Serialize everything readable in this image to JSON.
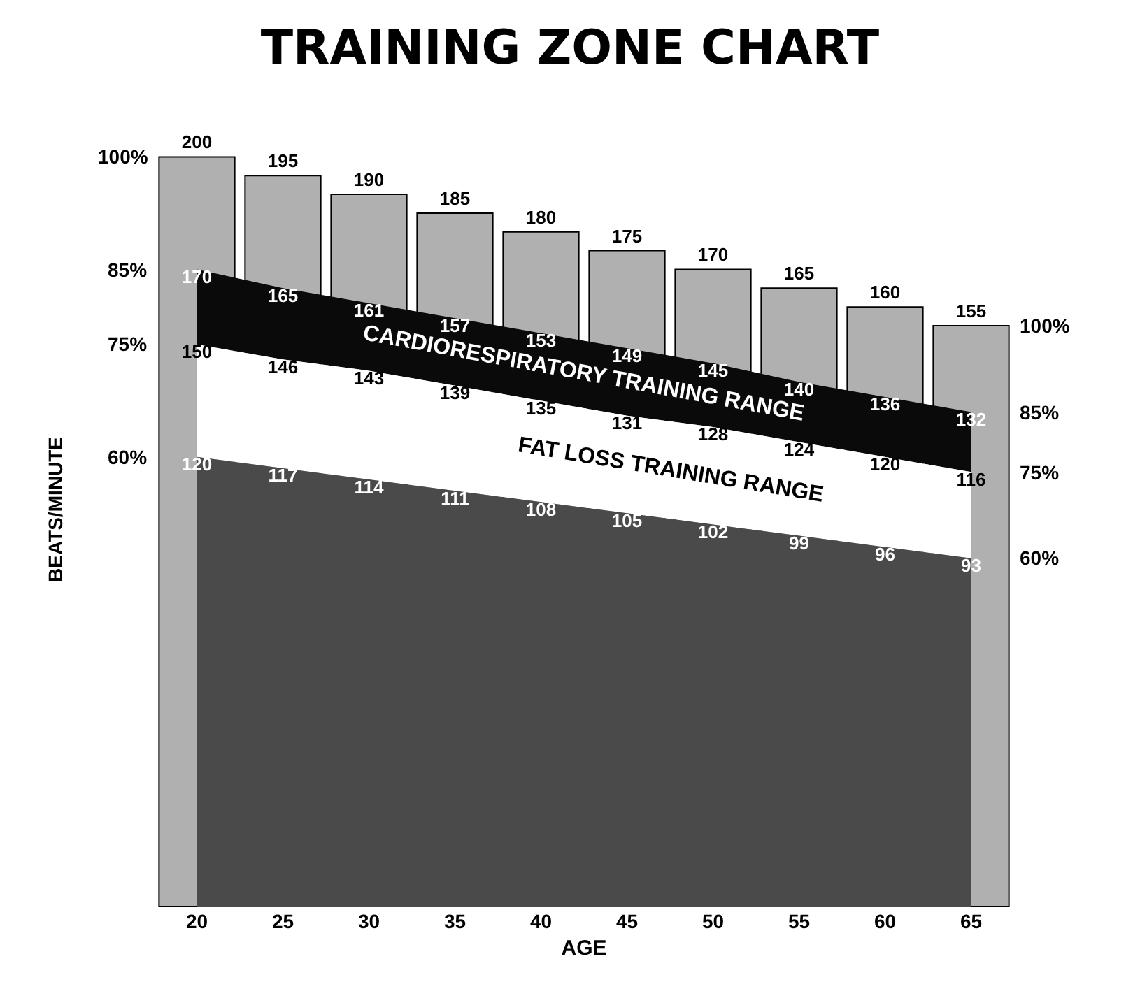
{
  "chart_data": {
    "type": "bar",
    "title": "TRAINING ZONE CHART",
    "xlabel": "AGE",
    "ylabel": "BEATS/MINUTE",
    "categories": [
      "20",
      "25",
      "30",
      "35",
      "40",
      "45",
      "50",
      "55",
      "60",
      "65"
    ],
    "series": [
      {
        "type": "bar",
        "color": "#b0b0b0",
        "values": [
          200,
          195,
          190,
          185,
          180,
          175,
          170,
          165,
          160,
          155
        ]
      },
      {
        "type": "area",
        "color": "#0a0a0a",
        "values": [
          170,
          165,
          161,
          157,
          153,
          149,
          145,
          140,
          136,
          132
        ]
      },
      {
        "type": "area",
        "color": "#ffffff",
        "values": [
          150,
          146,
          143,
          139,
          135,
          131,
          128,
          124,
          120,
          116
        ]
      },
      {
        "type": "area",
        "color": "#4a4a4a",
        "values": [
          120,
          117,
          114,
          111,
          108,
          105,
          102,
          99,
          96,
          93
        ]
      }
    ],
    "data_labels": true,
    "tick_labels": "x",
    "annotations": [
      "CARDIORESPIRATORY TRAINING RANGE",
      "FAT LOSS TRAINING RANGE",
      {
        "text": "100%",
        "x": "20",
        "y": 200
      },
      {
        "text": "85%",
        "x": "20",
        "y": 170
      },
      {
        "text": "75%",
        "x": "20",
        "y": 150
      },
      {
        "text": "60%",
        "x": "20",
        "y": 120
      },
      {
        "text": "100%",
        "x": "65",
        "y": 155
      },
      {
        "text": "85%",
        "x": "65",
        "y": 132
      },
      {
        "text": "75%",
        "x": "65",
        "y": 116
      },
      {
        "text": "60%",
        "x": "65",
        "y": 93
      }
    ],
    "grid": false
  }
}
